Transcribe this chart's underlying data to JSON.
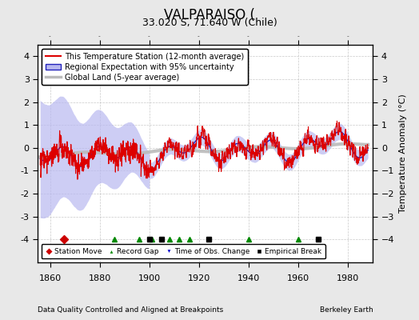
{
  "title": "VALPARAISO (",
  "subtitle": "33.020 S, 71.640 W (Chile)",
  "xlabel_left": "Data Quality Controlled and Aligned at Breakpoints",
  "xlabel_right": "Berkeley Earth",
  "ylabel": "Temperature Anomaly (°C)",
  "xlim": [
    1855,
    1990
  ],
  "ylim": [
    -5,
    4.5
  ],
  "yticks": [
    -4,
    -3,
    -2,
    -1,
    0,
    1,
    2,
    3,
    4
  ],
  "xticks": [
    1860,
    1880,
    1900,
    1920,
    1940,
    1960,
    1980
  ],
  "bg_color": "#e8e8e8",
  "plot_bg_color": "#ffffff",
  "grid_color": "#bbbbbb",
  "red_line_color": "#dd0000",
  "blue_line_color": "#2222bb",
  "blue_fill_color": "#b8b8f0",
  "gray_line_color": "#bbbbbb",
  "station_move_color": "#cc0000",
  "record_gap_color": "#008800",
  "time_obs_color": "#0000cc",
  "empirical_break_color": "#000000",
  "legend_items": [
    "This Temperature Station (12-month average)",
    "Regional Expectation with 95% uncertainty",
    "Global Land (5-year average)"
  ],
  "station_moves": [
    1865.5
  ],
  "record_gaps": [
    1886,
    1896,
    1901,
    1908,
    1912,
    1916,
    1940,
    1960
  ],
  "time_obs_changes": [],
  "empirical_breaks": [
    1900,
    1905,
    1924,
    1968
  ]
}
